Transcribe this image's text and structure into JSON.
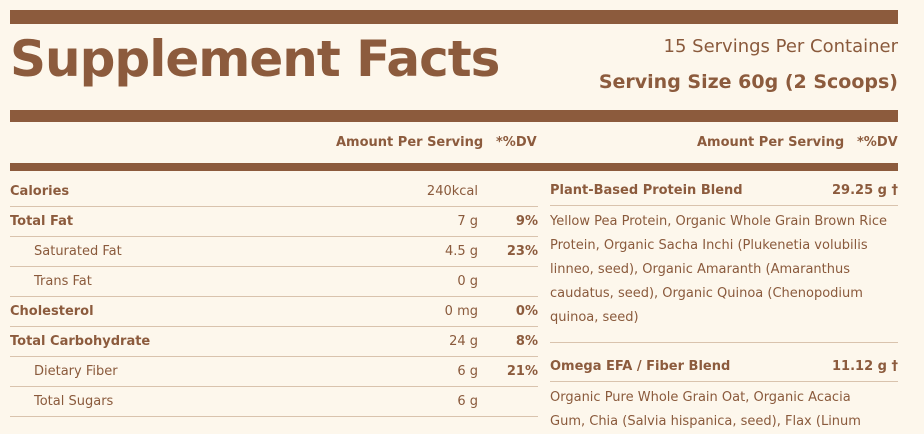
{
  "header": {
    "title": "Supplement Facts",
    "servings_per_container": "15 Servings Per Container",
    "serving_size": "Serving Size 60g (2 Scoops)"
  },
  "left_columns": {
    "amount_label": "Amount Per Serving",
    "dv_label": "*%DV"
  },
  "right_columns": {
    "amount_label": "Amount Per Serving",
    "dv_label": "*%DV"
  },
  "nutrients": [
    {
      "name": "Calories",
      "amount": "240kcal",
      "dv": ""
    },
    {
      "name": "Total Fat",
      "amount": "7 g",
      "dv": "9%"
    },
    {
      "name": "Saturated Fat",
      "amount": "4.5 g",
      "dv": "23%"
    },
    {
      "name": "Trans Fat",
      "amount": "0 g",
      "dv": ""
    },
    {
      "name": "Cholesterol",
      "amount": "0 mg",
      "dv": "0%"
    },
    {
      "name": "Total Carbohydrate",
      "amount": "24 g",
      "dv": "8%"
    },
    {
      "name": "Dietary Fiber",
      "amount": "6 g",
      "dv": "21%"
    },
    {
      "name": "Total Sugars",
      "amount": "6 g",
      "dv": ""
    }
  ],
  "blends": [
    {
      "name": "Plant-Based Protein Blend",
      "amount": "29.25 g †",
      "lines": [
        "Yellow Pea Protein, Organic Whole Grain Brown Rice",
        "Protein, Organic Sacha Inchi (Plukenetia volubilis",
        "linneo, seed), Organic Amaranth (Amaranthus",
        "caudatus, seed), Organic Quinoa (Chenopodium",
        "quinoa, seed)"
      ]
    },
    {
      "name": "Omega EFA / Fiber Blend",
      "amount": "11.12 g †",
      "lines": [
        "Organic Pure Whole Grain Oat, Organic Acacia",
        "Gum, Chia (Salvia hispanica, seed), Flax (Linum"
      ]
    }
  ]
}
